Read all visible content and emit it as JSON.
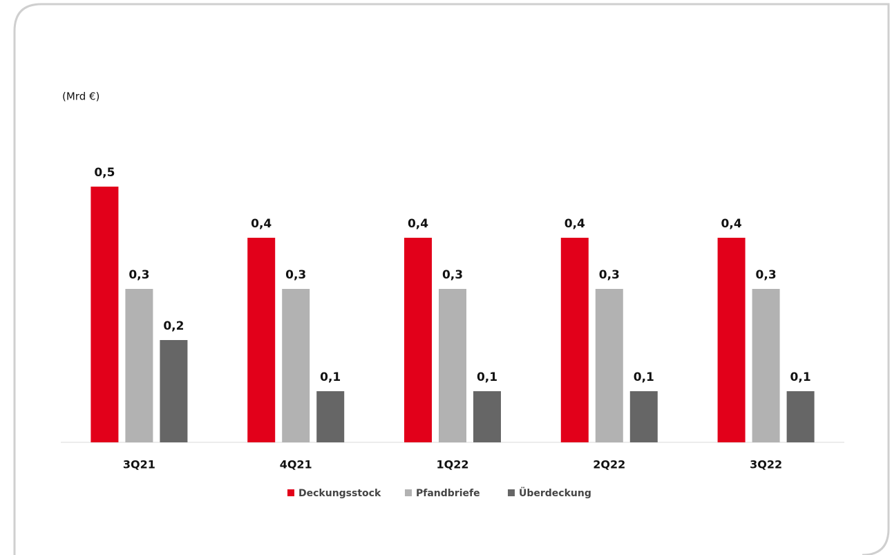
{
  "chart_data": {
    "type": "bar",
    "subtitle": "(Mrd €)",
    "categories": [
      "3Q21",
      "4Q21",
      "1Q22",
      "2Q22",
      "3Q22"
    ],
    "series": [
      {
        "name": "Deckungsstock",
        "color": "#e2001a",
        "values": [
          0.5,
          0.4,
          0.4,
          0.4,
          0.4
        ],
        "value_labels": [
          "0,5",
          "0,4",
          "0,4",
          "0,4",
          "0,4"
        ]
      },
      {
        "name": "Pfandbriefe",
        "color": "#b2b2b2",
        "values": [
          0.3,
          0.3,
          0.3,
          0.3,
          0.3
        ],
        "value_labels": [
          "0,3",
          "0,3",
          "0,3",
          "0,3",
          "0,3"
        ]
      },
      {
        "name": "Überdeckung",
        "color": "#666666",
        "values": [
          0.2,
          0.1,
          0.1,
          0.1,
          0.1
        ],
        "value_labels": [
          "0,2",
          "0,1",
          "0,1",
          "0,1",
          "0,1"
        ]
      }
    ],
    "ylim": [
      0,
      0.5
    ],
    "legend": "bottom"
  }
}
